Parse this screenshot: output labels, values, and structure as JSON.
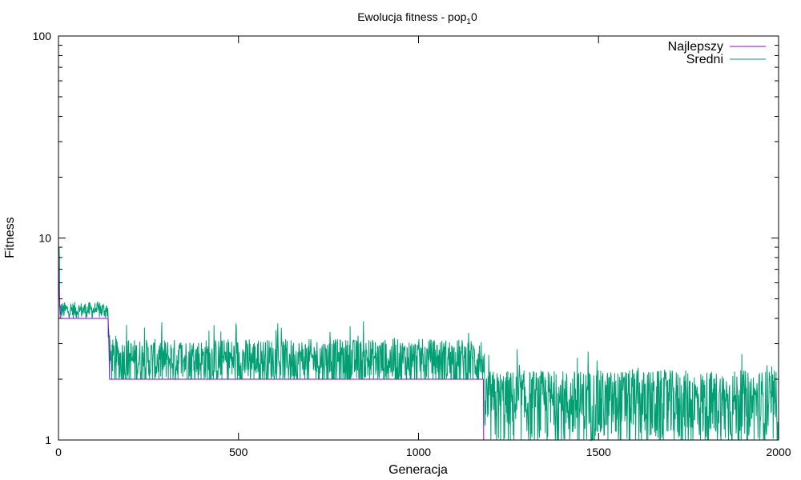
{
  "chart_data": {
    "type": "line",
    "title_main": "Ewolucja fitness - pop",
    "title_sub": "1",
    "title_tail": "0",
    "xlabel": "Generacja",
    "ylabel": "Fitness",
    "xlim": [
      0,
      2000
    ],
    "ylim": [
      1,
      100
    ],
    "yscale": "log",
    "x_ticks": [
      "0",
      "500",
      "1000",
      "1500",
      "2000"
    ],
    "y_ticks": [
      "1",
      "10",
      "100"
    ],
    "grid": false,
    "legend_position": "top-right",
    "series": [
      {
        "name": "Najlepszy",
        "color": "#9400d3",
        "points": [
          [
            0,
            10
          ],
          [
            1,
            6
          ],
          [
            3,
            5
          ],
          [
            5,
            4
          ],
          [
            138,
            4
          ],
          [
            140,
            3
          ],
          [
            142,
            2
          ],
          [
            1180,
            2
          ],
          [
            1181,
            1
          ],
          [
            2000,
            1
          ]
        ]
      },
      {
        "name": "Sredni",
        "color": "#009e73",
        "segments": [
          {
            "x_start": 0,
            "x_end": 3,
            "mean": 8.5,
            "low": 6.0,
            "high": 9.5
          },
          {
            "x_start": 3,
            "x_end": 138,
            "mean": 4.4,
            "low": 4.0,
            "high": 5.2
          },
          {
            "x_start": 138,
            "x_end": 142,
            "mean": 3.2,
            "low": 2.8,
            "high": 3.6
          },
          {
            "x_start": 142,
            "x_end": 1180,
            "mean": 2.5,
            "low": 2.0,
            "high": 3.9
          },
          {
            "x_start": 1180,
            "x_end": 2000,
            "mean": 1.55,
            "low": 1.0,
            "high": 2.9
          }
        ]
      }
    ]
  }
}
